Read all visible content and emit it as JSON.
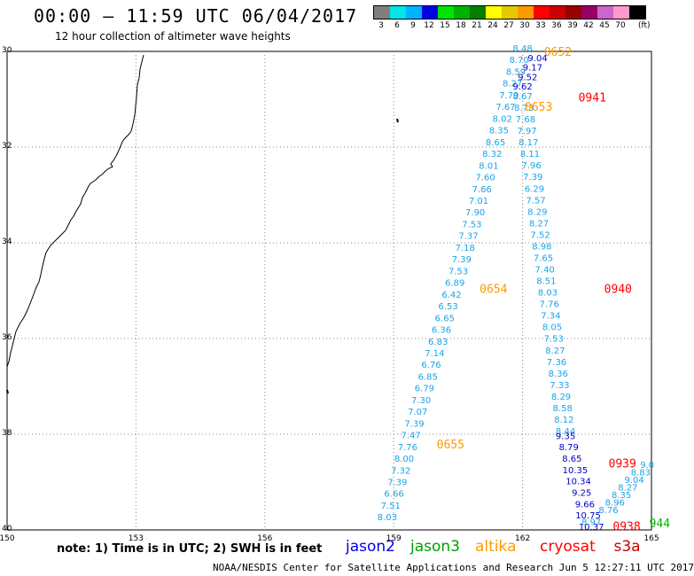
{
  "header": {
    "title": "00:00 – 11:59 UTC 06/04/2017",
    "subtitle": "12 hour collection of altimeter wave heights"
  },
  "legend": {
    "unit": "(ft)",
    "bins": [
      {
        "label": "3",
        "color": "#7f7f7f"
      },
      {
        "label": "6",
        "color": "#00e5e5"
      },
      {
        "label": "9",
        "color": "#00b2ff"
      },
      {
        "label": "12",
        "color": "#0000e5"
      },
      {
        "label": "15",
        "color": "#00e500"
      },
      {
        "label": "18",
        "color": "#00b200"
      },
      {
        "label": "21",
        "color": "#007f00"
      },
      {
        "label": "24",
        "color": "#ffff00"
      },
      {
        "label": "27",
        "color": "#e5c800"
      },
      {
        "label": "30",
        "color": "#ff9900"
      },
      {
        "label": "33",
        "color": "#ff0000"
      },
      {
        "label": "36",
        "color": "#cc0000"
      },
      {
        "label": "39",
        "color": "#990000"
      },
      {
        "label": "42",
        "color": "#990066"
      },
      {
        "label": "45",
        "color": "#cc66cc"
      },
      {
        "label": "70",
        "color": "#ff99cc"
      },
      {
        "label": "",
        "color": "#000000"
      }
    ]
  },
  "map": {
    "lat_labels": [
      "30",
      "32",
      "34",
      "36",
      "38",
      "40"
    ],
    "lon_labels": [
      "150",
      "153",
      "156",
      "159",
      "162",
      "165"
    ],
    "lat_range": [
      -30,
      -40
    ],
    "lon_range": [
      150,
      165
    ]
  },
  "tracks": [
    {
      "color": "#1aa3e8",
      "lon_start": 158.85,
      "lon_end": 162.0,
      "lat_start": -39.8,
      "lat_end": -30.0,
      "values": [
        "8.03",
        "7.51",
        "6.66",
        "7.39",
        "7.32",
        "8.00",
        "7.76",
        "7.47",
        "7.39",
        "7.07",
        "7.30",
        "6.79",
        "6.85",
        "6.76",
        "7.14",
        "6.83",
        "6.36",
        "6.65",
        "6.53",
        "6.42",
        "6.89",
        "7.53",
        "7.39",
        "7.18",
        "7.37",
        "7.53",
        "7.90",
        "7.01",
        "7.66",
        "7.60",
        "8.01",
        "8.32",
        "8.65",
        "8.35",
        "8.02",
        "7.67",
        "7.79",
        "8.27",
        "8.59",
        "8.70",
        "8.48"
      ]
    },
    {
      "color": "#1aa3e8",
      "lon_start": 162.0,
      "lon_end": 163.0,
      "lat_start": -31.0,
      "lat_end": -38.0,
      "values": [
        "8.67",
        "8.73",
        "7.68",
        "7.97",
        "8.17",
        "8.11",
        "7.96",
        "7.39",
        "6.29",
        "7.57",
        "8.29",
        "8.27",
        "7.52",
        "8.98",
        "7.65",
        "7.40",
        "8.51",
        "8.03",
        "7.76",
        "7.34",
        "8.05",
        "7.53",
        "8.27",
        "7.36",
        "8.36",
        "7.33",
        "8.29",
        "8.58",
        "8.12",
        "8.44"
      ]
    },
    {
      "color": "#0000c8",
      "lon_start": 162.35,
      "lon_end": 162.0,
      "lat_start": -30.2,
      "lat_end": -30.8,
      "values": [
        "9.04",
        "9.17",
        "9.52",
        "9.62"
      ]
    },
    {
      "color": "#0000c8",
      "lon_start": 163.0,
      "lon_end": 163.6,
      "lat_start": -38.1,
      "lat_end": -40.0,
      "values": [
        "9.35",
        "8.79",
        "8.65",
        "10.35",
        "10.34",
        "9.25",
        "9.66",
        "10.75",
        "10.37"
      ]
    },
    {
      "color": "#1aa3e8",
      "lon_start": 163.6,
      "lon_end": 163.6,
      "lat_start": -39.9,
      "lat_end": -39.9,
      "values": [
        "8.97"
      ]
    },
    {
      "color": "#1aa3e8",
      "lon_start": 164.0,
      "lon_end": 164.9,
      "lat_start": -39.65,
      "lat_end": -38.7,
      "values": [
        "8.76",
        "8.96",
        "8.35",
        "8.27",
        "9.04",
        "8.83",
        "9.0"
      ]
    }
  ],
  "time_labels": [
    {
      "text": "0652",
      "color": "#ff9900",
      "lon": 162.5,
      "lat": -30.0
    },
    {
      "text": "0941",
      "color": "#ff0000",
      "lon": 163.3,
      "lat": -30.95
    },
    {
      "text": "0653",
      "color": "#ff9900",
      "lon": 162.05,
      "lat": -31.15
    },
    {
      "text": "0654",
      "color": "#ff9900",
      "lon": 161.0,
      "lat": -34.95
    },
    {
      "text": "0940",
      "color": "#ff0000",
      "lon": 163.9,
      "lat": -34.95
    },
    {
      "text": "0655",
      "color": "#ff9900",
      "lon": 160.0,
      "lat": -38.2
    },
    {
      "text": "0939",
      "color": "#ff0000",
      "lon": 164.0,
      "lat": -38.6
    },
    {
      "text": "0938",
      "color": "#ff0000",
      "lon": 164.1,
      "lat": -39.92
    },
    {
      "text": "944",
      "color": "#00b200",
      "lon": 164.95,
      "lat": -39.85
    }
  ],
  "note": "note:  1) Time is in UTC;  2) SWH is in feet",
  "satellites": [
    {
      "name": "jason2",
      "color": "#0000e5"
    },
    {
      "name": "jason3",
      "color": "#00a000"
    },
    {
      "name": "altika",
      "color": "#ff9900"
    },
    {
      "name": "cryosat",
      "color": "#ff0000"
    },
    {
      "name": "s3a",
      "color": "#cc0000"
    }
  ],
  "footer": "NOAA/NESDIS Center for Satellite Applications and Research    Jun  5 12:27:11 UTC 2017"
}
